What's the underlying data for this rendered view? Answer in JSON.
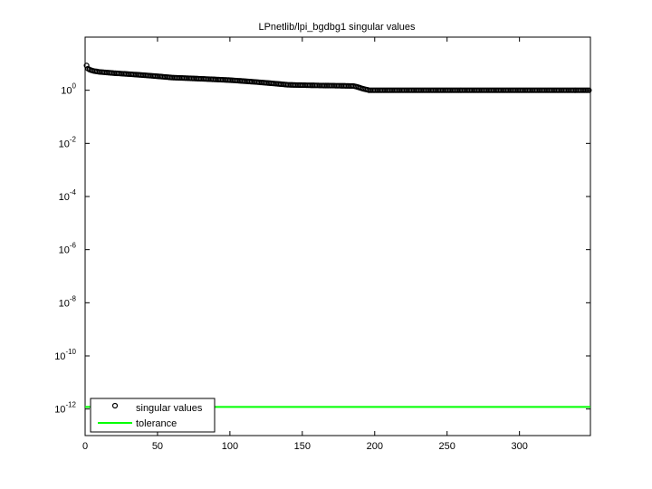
{
  "chart_data": {
    "type": "scatter",
    "title": "LPnetlib/lpi_bgdbg1 singular values",
    "log_y": true,
    "xlim": [
      0,
      349
    ],
    "xticks": [
      0,
      50,
      100,
      150,
      200,
      250,
      300
    ],
    "ylim": [
      1e-13,
      100
    ],
    "yticks": [
      {
        "value": 1,
        "label": "10^0"
      },
      {
        "value": 0.01,
        "label": "10^-2"
      },
      {
        "value": 0.0001,
        "label": "10^-4"
      },
      {
        "value": 1e-06,
        "label": "10^-6"
      },
      {
        "value": 1e-08,
        "label": "10^-8"
      },
      {
        "value": 1e-10,
        "label": "10^-10"
      },
      {
        "value": 1e-12,
        "label": "10^-12"
      }
    ],
    "legend": "lower left",
    "series": [
      {
        "name": "singular values",
        "color": "#000000",
        "marker": "circle",
        "x": [
          1,
          2,
          3,
          4,
          5,
          6,
          7,
          8,
          9,
          10,
          11,
          12,
          13,
          14,
          15,
          16,
          17,
          18,
          19,
          20,
          21,
          22,
          23,
          24,
          25,
          26,
          27,
          28,
          29,
          30,
          31,
          32,
          33,
          34,
          35,
          36,
          37,
          38,
          39,
          40,
          41,
          42,
          43,
          44,
          45,
          46,
          47,
          48,
          49,
          50,
          51,
          52,
          53,
          54,
          55,
          56,
          57,
          58,
          59,
          60,
          61,
          62,
          63,
          64,
          65,
          66,
          67,
          68,
          69,
          70,
          71,
          72,
          73,
          74,
          75,
          76,
          77,
          78,
          79,
          80,
          81,
          82,
          83,
          84,
          85,
          86,
          87,
          88,
          89,
          90,
          91,
          92,
          93,
          94,
          95,
          96,
          97,
          98,
          99,
          100,
          101,
          102,
          103,
          104,
          105,
          106,
          107,
          108,
          109,
          110,
          111,
          112,
          113,
          114,
          115,
          116,
          117,
          118,
          119,
          120,
          121,
          122,
          123,
          124,
          125,
          126,
          127,
          128,
          129,
          130,
          131,
          132,
          133,
          134,
          135,
          136,
          137,
          138,
          139,
          140,
          141,
          142,
          143,
          144,
          145,
          146,
          147,
          148,
          149,
          150,
          151,
          152,
          153,
          154,
          155,
          156,
          157,
          158,
          159,
          160,
          161,
          162,
          163,
          164,
          165,
          166,
          167,
          168,
          169,
          170,
          171,
          172,
          173,
          174,
          175,
          176,
          177,
          178,
          179,
          180,
          181,
          182,
          183,
          184,
          185,
          186,
          187,
          188,
          189,
          190,
          191,
          192,
          193,
          194,
          195,
          196,
          197,
          198,
          199,
          200,
          201,
          202,
          203,
          204,
          205,
          206,
          207,
          208,
          209,
          210,
          211,
          212,
          213,
          214,
          215,
          216,
          217,
          218,
          219,
          220,
          221,
          222,
          223,
          224,
          225,
          226,
          227,
          228,
          229,
          230,
          231,
          232,
          233,
          234,
          235,
          236,
          237,
          238,
          239,
          240,
          241,
          242,
          243,
          244,
          245,
          246,
          247,
          248,
          249,
          250,
          251,
          252,
          253,
          254,
          255,
          256,
          257,
          258,
          259,
          260,
          261,
          262,
          263,
          264,
          265,
          266,
          267,
          268,
          269,
          270,
          271,
          272,
          273,
          274,
          275,
          276,
          277,
          278,
          279,
          280,
          281,
          282,
          283,
          284,
          285,
          286,
          287,
          288,
          289,
          290,
          291,
          292,
          293,
          294,
          295,
          296,
          297,
          298,
          299,
          300,
          301,
          302,
          303,
          304,
          305,
          306,
          307,
          308,
          309,
          310,
          311,
          312,
          313,
          314,
          315,
          316,
          317,
          318,
          319,
          320,
          321,
          322,
          323,
          324,
          325,
          326,
          327,
          328,
          329,
          330,
          331,
          332,
          333,
          334,
          335,
          336,
          337,
          338,
          339,
          340,
          341,
          342,
          343,
          344,
          345,
          346,
          347,
          348
        ],
        "values": [
          8.5,
          6.5,
          6,
          5.7,
          5.5,
          5.3,
          5.2,
          5.1,
          5.0,
          4.9,
          4.85,
          4.8,
          4.75,
          4.7,
          4.65,
          4.6,
          4.55,
          4.5,
          4.45,
          4.4,
          4.37,
          4.33,
          4.3,
          4.26,
          4.23,
          4.19,
          4.16,
          4.12,
          4.09,
          4.05,
          4.02,
          3.98,
          3.95,
          3.91,
          3.88,
          3.84,
          3.81,
          3.77,
          3.74,
          3.7,
          3.67,
          3.63,
          3.6,
          3.56,
          3.53,
          3.49,
          3.46,
          3.42,
          3.39,
          3.35,
          3.32,
          3.28,
          3.25,
          3.21,
          3.18,
          3.14,
          3.11,
          3.07,
          3.04,
          3.0,
          2.99,
          2.97,
          2.96,
          2.94,
          2.93,
          2.91,
          2.9,
          2.88,
          2.87,
          2.85,
          2.84,
          2.82,
          2.81,
          2.79,
          2.78,
          2.76,
          2.75,
          2.73,
          2.72,
          2.7,
          2.69,
          2.67,
          2.66,
          2.64,
          2.63,
          2.61,
          2.6,
          2.58,
          2.57,
          2.55,
          2.54,
          2.52,
          2.51,
          2.49,
          2.48,
          2.46,
          2.45,
          2.43,
          2.42,
          2.4,
          2.38,
          2.36,
          2.34,
          2.32,
          2.3,
          2.28,
          2.26,
          2.24,
          2.22,
          2.2,
          2.18,
          2.16,
          2.14,
          2.12,
          2.1,
          2.08,
          2.06,
          2.04,
          2.02,
          2.0,
          1.98,
          1.96,
          1.94,
          1.92,
          1.9,
          1.88,
          1.86,
          1.84,
          1.82,
          1.8,
          1.78,
          1.76,
          1.74,
          1.72,
          1.7,
          1.68,
          1.66,
          1.64,
          1.62,
          1.6,
          1.6,
          1.59,
          1.59,
          1.58,
          1.58,
          1.57,
          1.57,
          1.56,
          1.56,
          1.55,
          1.55,
          1.55,
          1.54,
          1.54,
          1.54,
          1.53,
          1.53,
          1.53,
          1.52,
          1.52,
          1.52,
          1.51,
          1.51,
          1.51,
          1.5,
          1.5,
          1.5,
          1.5,
          1.49,
          1.49,
          1.49,
          1.49,
          1.48,
          1.48,
          1.48,
          1.48,
          1.47,
          1.47,
          1.47,
          1.46,
          1.46,
          1.46,
          1.45,
          1.45,
          1.45,
          1.42,
          1.38,
          1.33,
          1.28,
          1.23,
          1.18,
          1.14,
          1.1,
          1.07,
          1.05,
          1,
          1,
          1,
          1,
          1,
          1,
          1,
          1,
          1,
          1,
          1,
          1,
          1,
          1,
          1,
          1,
          1,
          1,
          1,
          1,
          1,
          1,
          1,
          1,
          1,
          1,
          1,
          1,
          1,
          1,
          1,
          1,
          1,
          1,
          1,
          1,
          1,
          1,
          1,
          1,
          1,
          1,
          1,
          1,
          1,
          1,
          1,
          1,
          1,
          1,
          1,
          1,
          1,
          1,
          1,
          1,
          1,
          1,
          1,
          1,
          1,
          1,
          1,
          1,
          1,
          1,
          1,
          1,
          1,
          1,
          1,
          1,
          1,
          1,
          1,
          1,
          1,
          1,
          1,
          1,
          1,
          1,
          1,
          1,
          1,
          1,
          1,
          1,
          1,
          1,
          1,
          1,
          1,
          1,
          1,
          1,
          1,
          1,
          1,
          1,
          1,
          1,
          1,
          1,
          1,
          1,
          1,
          1,
          1,
          1,
          1,
          1,
          1,
          1,
          1,
          1,
          1,
          1,
          1,
          1,
          1,
          1,
          1,
          1,
          1,
          1,
          1,
          1,
          1,
          1,
          1,
          1,
          1,
          1,
          1,
          1,
          1,
          1,
          1,
          1,
          1,
          1,
          1,
          1,
          1,
          1,
          1,
          1,
          1,
          1,
          1,
          1,
          1
        ]
      },
      {
        "name": "tolerance",
        "color": "#00ff00",
        "marker": "line",
        "x": [
          0,
          349
        ],
        "values": [
          1.2e-12,
          1.2e-12
        ]
      }
    ]
  }
}
